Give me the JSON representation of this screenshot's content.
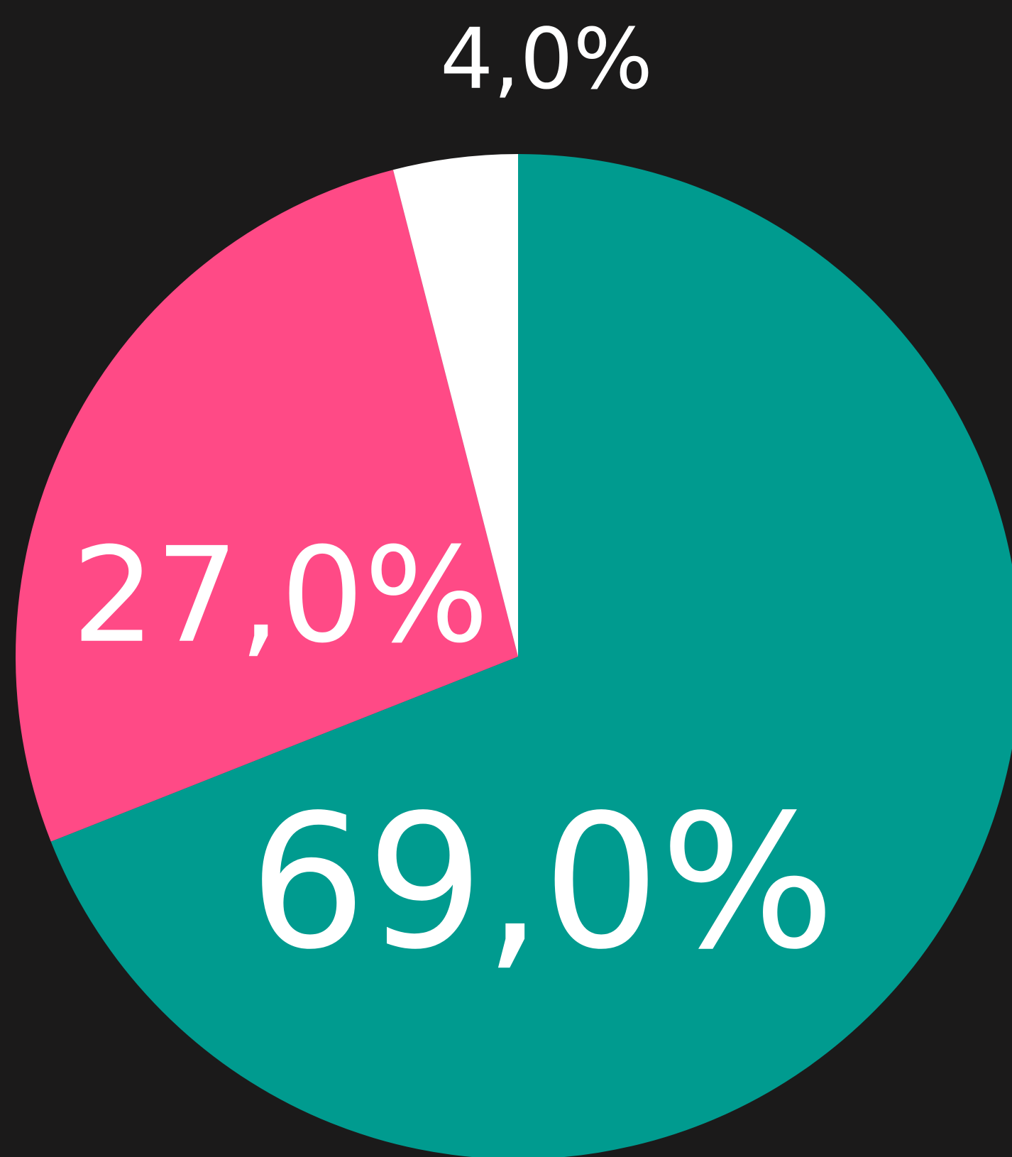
{
  "chart_data": {
    "type": "pie",
    "values": [
      69,
      27,
      4
    ],
    "value_labels": [
      "69,0%",
      "27,0%",
      "4,0%"
    ],
    "colors": [
      "#009b8f",
      "#ff4a86",
      "#ffffff"
    ]
  }
}
